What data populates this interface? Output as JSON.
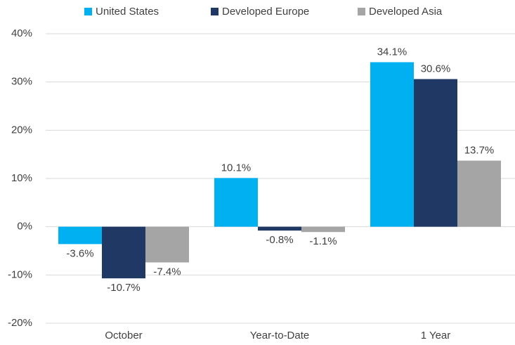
{
  "chart_data": {
    "type": "bar",
    "categories": [
      "October",
      "Year-to-Date",
      "1 Year"
    ],
    "series": [
      {
        "name": "United States",
        "color": "#00b0f0",
        "values": [
          -3.6,
          10.1,
          34.1
        ],
        "value_labels": [
          "-3.6%",
          "10.1%",
          "34.1%"
        ]
      },
      {
        "name": "Developed Europe",
        "color": "#1f3864",
        "values": [
          -10.7,
          -0.8,
          30.6
        ],
        "value_labels": [
          "-10.7%",
          "-0.8%",
          "30.6%"
        ]
      },
      {
        "name": "Developed Asia",
        "color": "#a5a5a5",
        "values": [
          -7.4,
          -1.1,
          13.7
        ],
        "value_labels": [
          "-7.4%",
          "-1.1%",
          "13.7%"
        ]
      }
    ],
    "ylim": [
      -20,
      40
    ],
    "yticks": [
      {
        "value": -20,
        "label": "-20%"
      },
      {
        "value": -10,
        "label": "-10%"
      },
      {
        "value": 0,
        "label": "0%"
      },
      {
        "value": 10,
        "label": "10%"
      },
      {
        "value": 20,
        "label": "20%"
      },
      {
        "value": 30,
        "label": "30%"
      },
      {
        "value": 40,
        "label": "40%"
      }
    ],
    "grid": true,
    "legend": "top"
  }
}
